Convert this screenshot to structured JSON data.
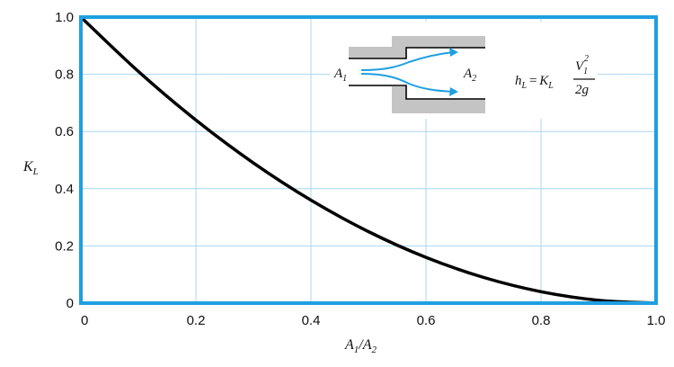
{
  "chart_data": {
    "type": "line",
    "title": "",
    "xlabel": {
      "main": "A",
      "sub1": "1",
      "slash": "/",
      "main2": "A",
      "sub2": "2"
    },
    "ylabel": {
      "main": "K",
      "sub": "L"
    },
    "xlim": [
      0,
      1.0
    ],
    "ylim": [
      0,
      1.0
    ],
    "x_ticks": [
      "0",
      "0.2",
      "0.4",
      "0.6",
      "0.8",
      "1.0"
    ],
    "y_ticks": [
      "0",
      "0.2",
      "0.4",
      "0.6",
      "0.8",
      "1.0"
    ],
    "grid": true,
    "series": [
      {
        "x": [
          0,
          0.1,
          0.2,
          0.3,
          0.4,
          0.5,
          0.6,
          0.7,
          0.8,
          0.9,
          1.0
        ],
        "y": [
          1.0,
          0.81,
          0.64,
          0.49,
          0.36,
          0.25,
          0.16,
          0.09,
          0.04,
          0.01,
          0.0
        ]
      }
    ],
    "colors": {
      "frame": "#1e9fe0",
      "grid": "#a9d6f2",
      "curve": "#000000",
      "inset_wall": "#c4c4c4",
      "inset_arrow": "#1e9fe0"
    },
    "inset": {
      "a1_main": "A",
      "a1_sub": "1",
      "a2_main": "A",
      "a2_sub": "2",
      "eq_h": "h",
      "eq_h_sub": "L",
      "eq_equals": "=",
      "eq_k": "K",
      "eq_k_sub": "L",
      "eq_num": "V",
      "eq_num_sub": "1",
      "eq_num_sup": "2",
      "eq_den_2": "2",
      "eq_den_g": "g"
    }
  }
}
